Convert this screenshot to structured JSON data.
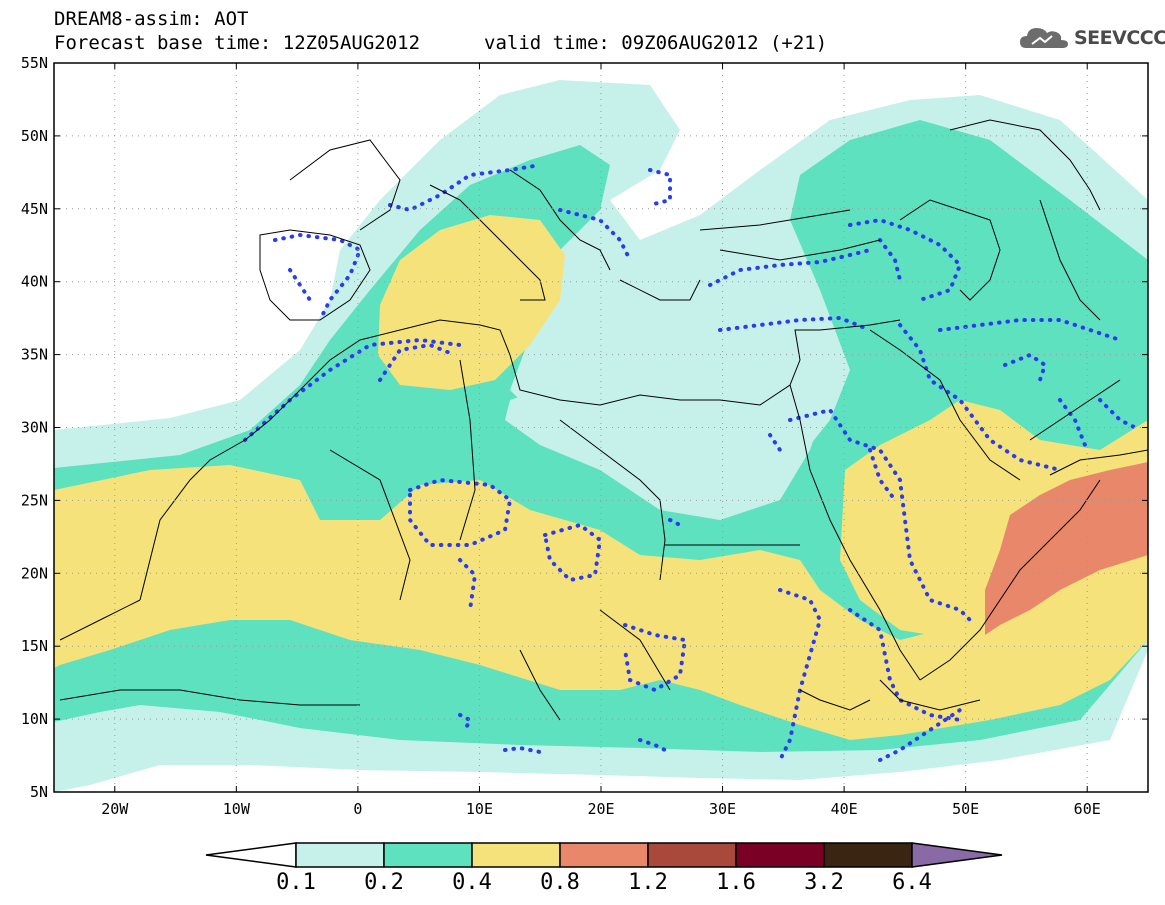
{
  "header": {
    "title": "DREAM8-assim: AOT",
    "base_time": "Forecast base time: 12Z05AUG2012",
    "valid_time": "valid time: 09Z06AUG2012 (+21)"
  },
  "logo": {
    "text": "SEEVCCC",
    "icon": "cloud-icon"
  },
  "map": {
    "lon_range": [
      -25,
      65
    ],
    "lat_range": [
      5,
      55
    ],
    "gridlines": "dotted",
    "lat_ticks": [
      "5N",
      "10N",
      "15N",
      "20N",
      "25N",
      "30N",
      "35N",
      "40N",
      "45N",
      "50N",
      "55N"
    ],
    "lon_ticks": [
      "20W",
      "10W",
      "0",
      "10E",
      "20E",
      "30E",
      "40E",
      "50E",
      "60E"
    ]
  },
  "colorbar": {
    "labels": [
      "0.1",
      "0.2",
      "0.4",
      "0.8",
      "1.2",
      "1.6",
      "3.2",
      "6.4"
    ],
    "colors": [
      "#ffffff",
      "#c6f1ea",
      "#5ee1bf",
      "#f5e27a",
      "#e8876a",
      "#a9493b",
      "#7a0026",
      "#3a2512",
      "#8a6aa6"
    ]
  }
}
